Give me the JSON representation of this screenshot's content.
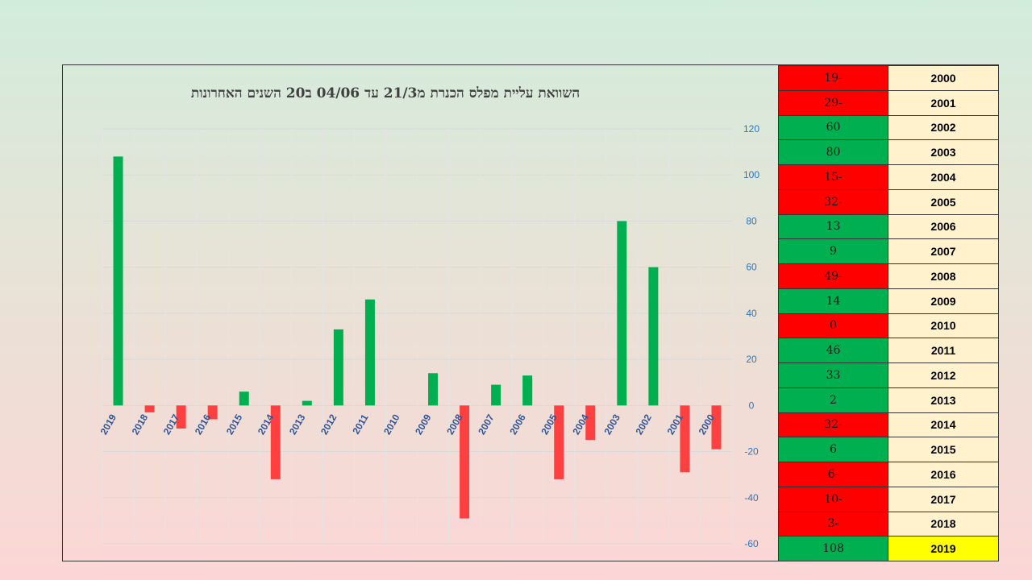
{
  "colors": {
    "positive": "#00b050",
    "negative": "#ff0000",
    "bar_positive": "#00b050",
    "bar_negative": "#ff4040",
    "year_cell": "#fff2cc",
    "year_highlight": "#ffff00",
    "axis_label": "#2e75b6",
    "category_label": "#2f5597"
  },
  "chart_data": {
    "type": "bar",
    "title": "השוואת עליית מפלס הכנרת מ21/3 עד 04/06 ב20 השנים האחרונות",
    "categories": [
      "2019",
      "2018",
      "2017",
      "2016",
      "2015",
      "2014",
      "2013",
      "2012",
      "2011",
      "2010",
      "2009",
      "2008",
      "2007",
      "2006",
      "2005",
      "2004",
      "2003",
      "2002",
      "2001",
      "2000"
    ],
    "values": [
      108,
      -3,
      -10,
      -6,
      6,
      -32,
      2,
      33,
      46,
      0,
      14,
      -49,
      9,
      13,
      -32,
      -15,
      80,
      60,
      -29,
      -19
    ],
    "ylim": [
      -60,
      120
    ],
    "yticks": [
      -60,
      -40,
      -20,
      0,
      20,
      40,
      60,
      80,
      100,
      120
    ],
    "y_axis_side": "right",
    "grid": true
  },
  "table": {
    "rows": [
      {
        "year": "2000",
        "value": "19-"
      },
      {
        "year": "2001",
        "value": "29-"
      },
      {
        "year": "2002",
        "value": "60"
      },
      {
        "year": "2003",
        "value": "80"
      },
      {
        "year": "2004",
        "value": "15-"
      },
      {
        "year": "2005",
        "value": "32-"
      },
      {
        "year": "2006",
        "value": "13"
      },
      {
        "year": "2007",
        "value": "9"
      },
      {
        "year": "2008",
        "value": "49-"
      },
      {
        "year": "2009",
        "value": "14"
      },
      {
        "year": "2010",
        "value": "0"
      },
      {
        "year": "2011",
        "value": "46"
      },
      {
        "year": "2012",
        "value": "33"
      },
      {
        "year": "2013",
        "value": "2"
      },
      {
        "year": "2014",
        "value": "32-"
      },
      {
        "year": "2015",
        "value": "6"
      },
      {
        "year": "2016",
        "value": "6-"
      },
      {
        "year": "2017",
        "value": "10-"
      },
      {
        "year": "2018",
        "value": "3-"
      },
      {
        "year": "2019",
        "value": "108"
      }
    ]
  }
}
